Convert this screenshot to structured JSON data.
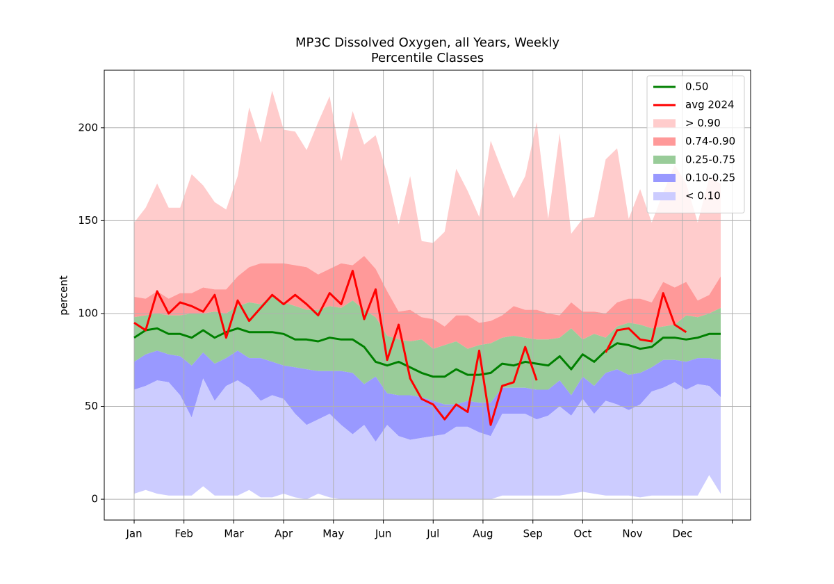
{
  "chart_data": {
    "type": "band",
    "title": "MP3C Dissolved Oxygen, all Years, Weekly",
    "subtitle": "Percentile Classes",
    "y_label": "percent",
    "x": [
      0,
      1,
      2,
      3,
      4,
      5,
      6,
      7,
      8,
      9,
      10,
      11,
      12,
      13,
      14,
      15,
      16,
      17,
      18,
      19,
      20,
      21,
      22,
      23,
      24,
      25,
      26,
      27,
      28,
      29,
      30,
      31,
      32,
      33,
      34,
      35,
      36,
      37,
      38,
      39,
      40,
      41,
      42,
      43,
      44,
      45,
      46,
      47,
      48,
      49,
      50,
      51
    ],
    "xlim": [
      -2.6,
      53.6
    ],
    "xticks": [
      {
        "value": 0,
        "label": "Jan"
      },
      {
        "value": 4.33,
        "label": "Feb"
      },
      {
        "value": 8.67,
        "label": "Mar"
      },
      {
        "value": 13,
        "label": "Apr"
      },
      {
        "value": 17.33,
        "label": "May"
      },
      {
        "value": 21.67,
        "label": "Jun"
      },
      {
        "value": 26,
        "label": "Jul"
      },
      {
        "value": 30.33,
        "label": "Aug"
      },
      {
        "value": 34.67,
        "label": "Sep"
      },
      {
        "value": 39,
        "label": "Oct"
      },
      {
        "value": 43.33,
        "label": "Nov"
      },
      {
        "value": 47.67,
        "label": "Dec"
      },
      {
        "value": 52,
        "label": null
      }
    ],
    "ylim": [
      -11.2,
      231
    ],
    "yticks": [
      0,
      50,
      100,
      150,
      200
    ],
    "grid": true,
    "legend": "upper right",
    "series": [
      {
        "name": "0.50",
        "color": "#008000",
        "values": [
          87,
          91,
          92,
          89,
          89,
          87,
          91,
          87,
          90,
          92,
          90,
          90,
          90,
          89,
          86,
          86,
          85,
          87,
          86,
          86,
          82,
          74,
          72,
          74,
          71,
          68,
          66,
          66,
          70,
          67,
          67,
          68,
          73,
          72,
          74,
          73,
          72,
          77,
          70,
          78,
          74,
          80,
          84,
          83,
          81,
          82,
          87,
          87,
          86,
          87,
          89,
          89
        ]
      },
      {
        "name": "avg 2024",
        "color": "#ff0000",
        "values": [
          95,
          91,
          112,
          100,
          106,
          104,
          101,
          110,
          87,
          107,
          96,
          103,
          110,
          105,
          110,
          105,
          99,
          111,
          105,
          123,
          97,
          113,
          75,
          94,
          65,
          54,
          51,
          43,
          51,
          47,
          80,
          40,
          61,
          63,
          82,
          64,
          null,
          null,
          null,
          null,
          null,
          79,
          91,
          92,
          86,
          85,
          111,
          94,
          90,
          null,
          null,
          null
        ]
      }
    ],
    "bands": [
      {
        "name": "> 0.90",
        "color": "#ffcccc",
        "lower": [
          109,
          108,
          112,
          108,
          111,
          111,
          114,
          113,
          113,
          120,
          125,
          127,
          127,
          127,
          126,
          125,
          121,
          124,
          127,
          126,
          131,
          124,
          112,
          101,
          102,
          98,
          97,
          93,
          99,
          99,
          95,
          96,
          99,
          104,
          102,
          102,
          100,
          99,
          106,
          101,
          101,
          100,
          106,
          108,
          108,
          106,
          117,
          114,
          117,
          107,
          110,
          120
        ],
        "upper": [
          149,
          157,
          170,
          157,
          157,
          175,
          169,
          160,
          156,
          174,
          211,
          192,
          220,
          199,
          198,
          188,
          203,
          217,
          182,
          209,
          191,
          196,
          175,
          148,
          174,
          139,
          138,
          144,
          178,
          166,
          152,
          193,
          177,
          162,
          174,
          203,
          151,
          197,
          143,
          151,
          152,
          183,
          189,
          151,
          167,
          149,
          165,
          180,
          170,
          149,
          173,
          170
        ]
      },
      {
        "name": "0.74-0.90",
        "color": "#ff9999",
        "lower": [
          98,
          99,
          100,
          99,
          99,
          100,
          100,
          101,
          100,
          104,
          106,
          105,
          110,
          106,
          104,
          102,
          102,
          104,
          103,
          107,
          102,
          98,
          88,
          86,
          85,
          86,
          81,
          83,
          85,
          81,
          83,
          84,
          87,
          88,
          87,
          86,
          86,
          87,
          92,
          86,
          89,
          87,
          93,
          95,
          94,
          92,
          93,
          94,
          99,
          98,
          100,
          103
        ],
        "upper": [
          109,
          108,
          112,
          108,
          111,
          111,
          114,
          113,
          113,
          120,
          125,
          127,
          127,
          127,
          126,
          125,
          121,
          124,
          127,
          126,
          131,
          124,
          112,
          101,
          102,
          98,
          97,
          93,
          99,
          99,
          95,
          96,
          99,
          104,
          102,
          102,
          100,
          99,
          106,
          101,
          101,
          100,
          106,
          108,
          108,
          106,
          117,
          114,
          117,
          107,
          110,
          120
        ]
      },
      {
        "name": "0.25-0.75",
        "color": "#99cc99",
        "lower": [
          74,
          78,
          80,
          78,
          77,
          72,
          79,
          73,
          76,
          80,
          76,
          76,
          74,
          72,
          71,
          70,
          69,
          69,
          69,
          68,
          62,
          66,
          57,
          56,
          56,
          55,
          53,
          51,
          51,
          53,
          52,
          52,
          60,
          60,
          60,
          59,
          59,
          64,
          56,
          66,
          61,
          68,
          70,
          67,
          68,
          71,
          75,
          75,
          74,
          76,
          76,
          75
        ],
        "upper": [
          98,
          99,
          100,
          99,
          99,
          100,
          100,
          101,
          100,
          104,
          106,
          105,
          110,
          106,
          104,
          102,
          102,
          104,
          103,
          107,
          102,
          98,
          88,
          86,
          85,
          86,
          81,
          83,
          85,
          81,
          83,
          84,
          87,
          88,
          87,
          86,
          86,
          87,
          92,
          86,
          89,
          87,
          93,
          95,
          94,
          92,
          93,
          94,
          99,
          98,
          100,
          103
        ]
      },
      {
        "name": "0.10-0.25",
        "color": "#9999ff",
        "lower": [
          59,
          61,
          64,
          63,
          56,
          44,
          65,
          53,
          61,
          64,
          60,
          53,
          56,
          54,
          46,
          40,
          43,
          46,
          40,
          35,
          40,
          31,
          40,
          34,
          32,
          33,
          34,
          35,
          39,
          39,
          36,
          34,
          46,
          46,
          46,
          43,
          45,
          50,
          45,
          54,
          46,
          53,
          51,
          48,
          51,
          58,
          60,
          63,
          59,
          62,
          61,
          55
        ],
        "upper": [
          74,
          78,
          80,
          78,
          77,
          72,
          79,
          73,
          76,
          80,
          76,
          76,
          74,
          72,
          71,
          70,
          69,
          69,
          69,
          68,
          62,
          66,
          57,
          56,
          56,
          55,
          53,
          51,
          51,
          53,
          52,
          52,
          60,
          60,
          60,
          59,
          59,
          64,
          56,
          66,
          61,
          68,
          70,
          67,
          68,
          71,
          75,
          75,
          74,
          76,
          76,
          75
        ]
      },
      {
        "name": "< 0.10",
        "color": "#ccccff",
        "lower": [
          3,
          5,
          3,
          2,
          2,
          2,
          7,
          2,
          2,
          2,
          5,
          1,
          1,
          3,
          1,
          0,
          3,
          1,
          0,
          0,
          0,
          0,
          0,
          0,
          0,
          0,
          0,
          0,
          0,
          0,
          0,
          0,
          2,
          2,
          2,
          2,
          2,
          2,
          3,
          4,
          3,
          2,
          2,
          2,
          1,
          2,
          2,
          2,
          2,
          2,
          13,
          3
        ],
        "upper": [
          59,
          61,
          64,
          63,
          56,
          44,
          65,
          53,
          61,
          64,
          60,
          53,
          56,
          54,
          46,
          40,
          43,
          46,
          40,
          35,
          40,
          31,
          40,
          34,
          32,
          33,
          34,
          35,
          39,
          39,
          36,
          34,
          46,
          46,
          46,
          43,
          45,
          50,
          45,
          54,
          46,
          53,
          51,
          48,
          51,
          58,
          60,
          63,
          59,
          62,
          61,
          55
        ]
      }
    ]
  }
}
